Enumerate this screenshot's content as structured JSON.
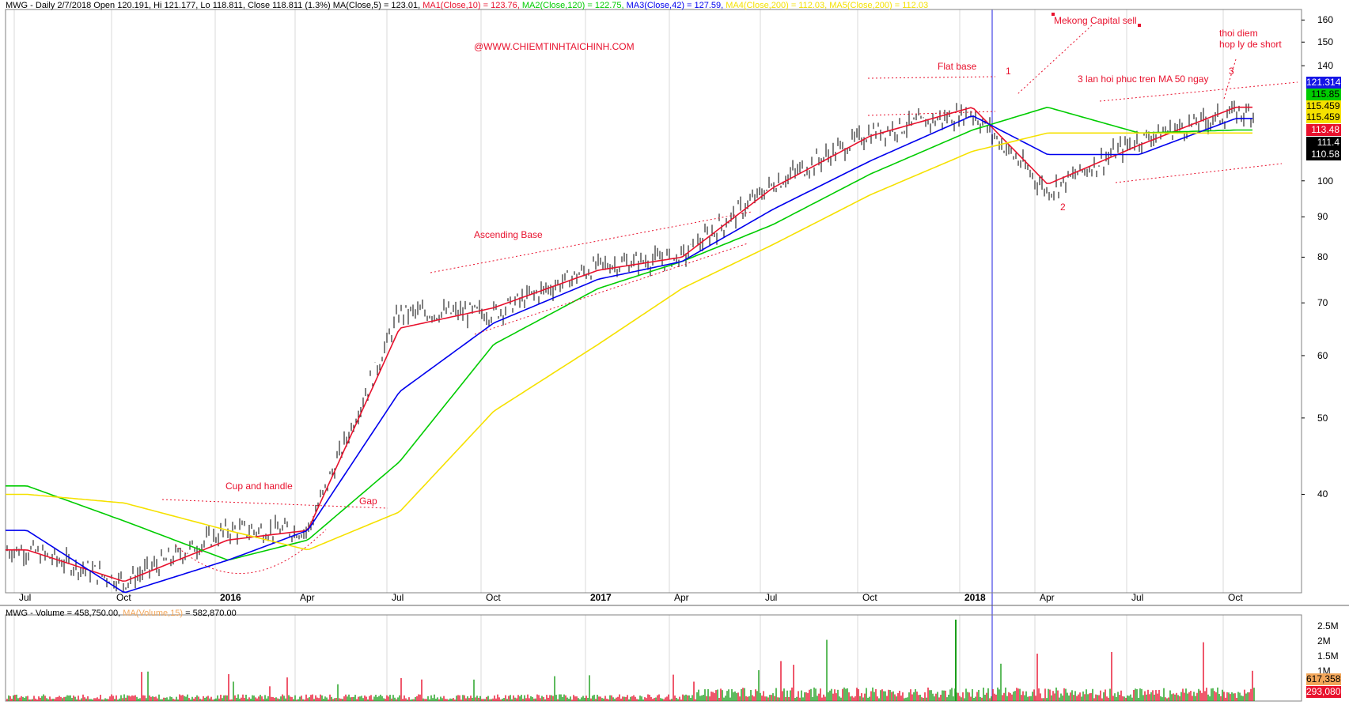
{
  "header": {
    "price": [
      {
        "text": "MWG - Daily 2/7/2018 Open 120.191, Hi 121.177, Lo 118.811, Close 118.811 (1.3%) MA(Close,5) = 123.01, ",
        "color": "#000000"
      },
      {
        "text": "MA1(Close,10) = 123.76, ",
        "color": "#e8112d"
      },
      {
        "text": "MA2(Close,120) = 122.75, ",
        "color": "#00cc00"
      },
      {
        "text": "MA3(Close,42) = 127.59, ",
        "color": "#0000ee"
      },
      {
        "text": "MA4(Close,200) = 112.03, ",
        "color": "#f5e100"
      },
      {
        "text": "MA5(Close,200) = 112.03",
        "color": "#f5e100"
      }
    ],
    "volume": [
      {
        "text": "MWG - Volume = 458,750.00, ",
        "color": "#000000"
      },
      {
        "text": "MA(Volume,15)",
        "color": "#f2a65a"
      },
      {
        "text": " = 582,870.00",
        "color": "#000000"
      }
    ]
  },
  "watermark": "@WWW.CHIEMTINHTAICHINH.COM",
  "annotations": {
    "mekong": "Mekong Capital sell",
    "thoi_diem_1": "thoi diem",
    "thoi_diem_2": "hop ly de short",
    "flat_base": "Flat base",
    "three_times": "3 lan hoi phuc tren MA 50 ngay",
    "n1": "1",
    "n2": "2",
    "n3": "3",
    "ascending": "Ascending Base",
    "cup": "Cup and handle",
    "gap": "Gap"
  },
  "price_axis": {
    "ticks": [
      160,
      150,
      140,
      100,
      90,
      80,
      70,
      60,
      50,
      40
    ],
    "min": 30,
    "max": 165,
    "badges": [
      {
        "value": "121.314",
        "bg": "#1515e6",
        "fg": "#ffffff"
      },
      {
        "value": "115.85",
        "bg": "#00cc00",
        "fg": "#000000"
      },
      {
        "value": "115.459",
        "bg": "#f5e100",
        "fg": "#000000"
      },
      {
        "value": "115.459",
        "bg": "#f5e100",
        "fg": "#000000"
      },
      {
        "value": "113.48",
        "bg": "#e8112d",
        "fg": "#ffffff"
      },
      {
        "value": "111.4",
        "bg": "#000000",
        "fg": "#ffffff"
      },
      {
        "value": "110.58",
        "bg": "#000000",
        "fg": "#ffffff"
      }
    ]
  },
  "volume_axis": {
    "ticks": [
      "2.5M",
      "2M",
      "1.5M",
      "1M"
    ],
    "badges": [
      {
        "value": "617,358",
        "bg": "#f2a65a",
        "fg": "#000000"
      },
      {
        "value": "293,080",
        "bg": "#e8112d",
        "fg": "#ffffff"
      }
    ]
  },
  "x_axis": [
    {
      "label": "Jul",
      "bold": false
    },
    {
      "label": "Oct",
      "bold": false
    },
    {
      "label": "2016",
      "bold": true
    },
    {
      "label": "Apr",
      "bold": false
    },
    {
      "label": "Jul",
      "bold": false
    },
    {
      "label": "Oct",
      "bold": false
    },
    {
      "label": "2017",
      "bold": true
    },
    {
      "label": "Apr",
      "bold": false
    },
    {
      "label": "Jul",
      "bold": false
    },
    {
      "label": "Oct",
      "bold": false
    },
    {
      "label": "2018",
      "bold": true
    },
    {
      "label": "Apr",
      "bold": false
    },
    {
      "label": "Jul",
      "bold": false
    },
    {
      "label": "Oct",
      "bold": false
    }
  ],
  "chart_data": {
    "type": "line",
    "title": "MWG - Daily 2/7/2018",
    "ohlc_last": {
      "open": 120.191,
      "high": 121.177,
      "low": 118.811,
      "close": 118.811,
      "change_pct": 1.3
    },
    "x": [
      "Jul 2015",
      "Oct 2015",
      "Jan 2016",
      "Apr 2016",
      "Jul 2016",
      "Oct 2016",
      "Jan 2017",
      "Apr 2017",
      "Jul 2017",
      "Oct 2017",
      "Jan 2018",
      "Apr 2018",
      "Jul 2018",
      "Oct 2018"
    ],
    "ylim": [
      30,
      165
    ],
    "y_scale": "log",
    "grid": true,
    "series": [
      {
        "name": "Close",
        "color": "#000000",
        "values": [
          34,
          31,
          36,
          36,
          68,
          68,
          78,
          80,
          99,
          115,
          122,
          97,
          113,
          122
        ]
      },
      {
        "name": "MA1(Close,10)",
        "color": "#e8112d",
        "values": [
          34,
          31,
          35,
          36,
          65,
          69,
          77,
          80,
          98,
          114,
          124,
          99,
          111,
          124
        ]
      },
      {
        "name": "MA2(Close,120)",
        "color": "#00cc00",
        "values": [
          41,
          37,
          33,
          35,
          44,
          62,
          73,
          79,
          88,
          102,
          116,
          124,
          115,
          116
        ]
      },
      {
        "name": "MA3(Close,42)",
        "color": "#0000ee",
        "values": [
          36,
          30,
          33,
          36,
          54,
          66,
          75,
          79,
          92,
          106,
          121,
          108,
          108,
          120
        ]
      },
      {
        "name": "MA4(Close,200)",
        "color": "#f5e100",
        "values": [
          40,
          39,
          36,
          34,
          38,
          51,
          62,
          73,
          83,
          96,
          109,
          115,
          115,
          115
        ]
      }
    ],
    "volume": {
      "name": "Volume",
      "ma_name": "MA(Volume,15)",
      "ticks": [
        "2.5M",
        "2M",
        "1.5M",
        "1M"
      ],
      "last": 458750,
      "ma_last": 582870,
      "peak": 2700000
    }
  }
}
